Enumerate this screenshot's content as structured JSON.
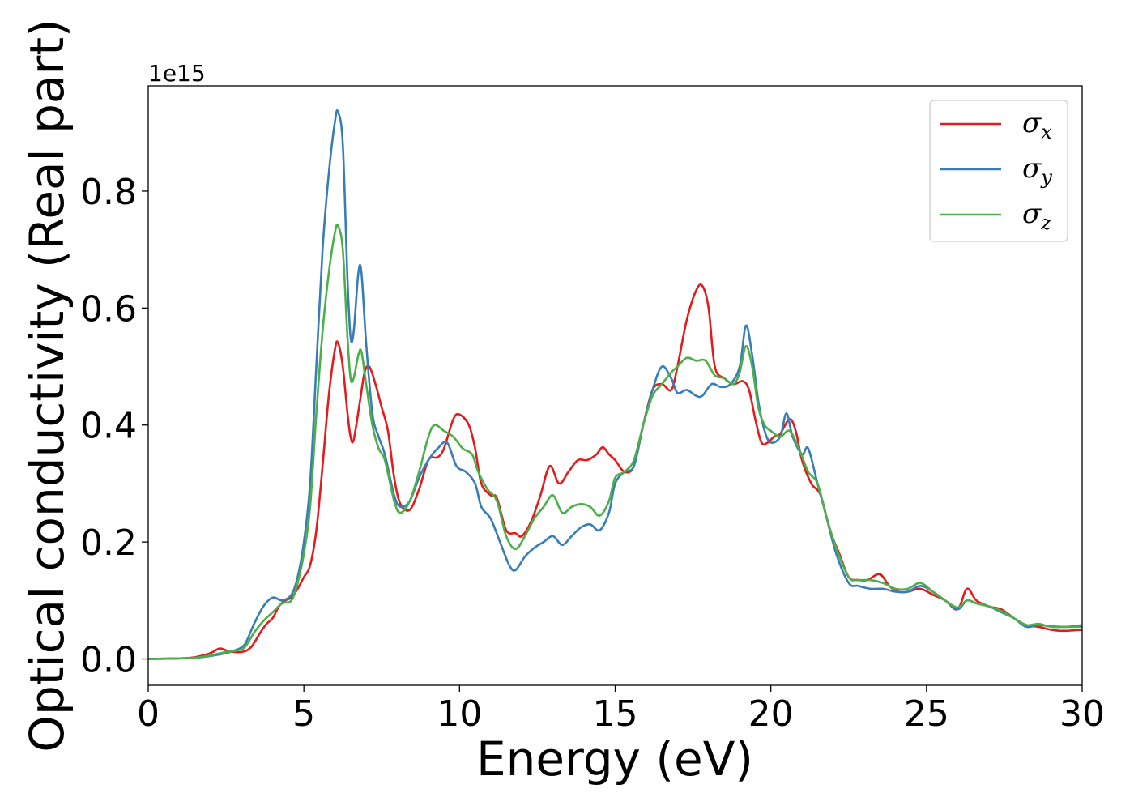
{
  "chart_data": {
    "type": "line",
    "title": "",
    "xlabel": "Energy (eV)",
    "ylabel": "Optical conductivity (Real part)",
    "y_offset_label": "1e15",
    "xlim": [
      0,
      30
    ],
    "ylim": [
      -0.045,
      0.98
    ],
    "y_scale_note": "values in units of 1e15",
    "xticks": [
      0,
      5,
      10,
      15,
      20,
      25,
      30
    ],
    "xtick_labels": [
      "0",
      "5",
      "10",
      "15",
      "20",
      "25",
      "30"
    ],
    "yticks": [
      0.0,
      0.2,
      0.4,
      0.6,
      0.8
    ],
    "ytick_labels": [
      "0.0",
      "0.2",
      "0.4",
      "0.6",
      "0.8"
    ],
    "grid": false,
    "legend_placement": "top-right",
    "series": [
      {
        "name": "σx",
        "symbol": "σ",
        "subscript": "x",
        "color": "#e41a1c",
        "points": [
          [
            0,
            0
          ],
          [
            1,
            0.001
          ],
          [
            1.5,
            0.003
          ],
          [
            2,
            0.01
          ],
          [
            2.3,
            0.018
          ],
          [
            2.6,
            0.013
          ],
          [
            3,
            0.012
          ],
          [
            3.3,
            0.02
          ],
          [
            3.6,
            0.045
          ],
          [
            3.8,
            0.06
          ],
          [
            4,
            0.07
          ],
          [
            4.2,
            0.09
          ],
          [
            4.4,
            0.1
          ],
          [
            4.6,
            0.105
          ],
          [
            4.8,
            0.12
          ],
          [
            5,
            0.14
          ],
          [
            5.2,
            0.16
          ],
          [
            5.4,
            0.22
          ],
          [
            5.6,
            0.33
          ],
          [
            5.8,
            0.45
          ],
          [
            6,
            0.53
          ],
          [
            6.1,
            0.54
          ],
          [
            6.25,
            0.5
          ],
          [
            6.4,
            0.42
          ],
          [
            6.5,
            0.38
          ],
          [
            6.6,
            0.375
          ],
          [
            6.8,
            0.44
          ],
          [
            6.95,
            0.49
          ],
          [
            7.1,
            0.5
          ],
          [
            7.3,
            0.47
          ],
          [
            7.5,
            0.43
          ],
          [
            7.7,
            0.39
          ],
          [
            7.9,
            0.31
          ],
          [
            8.1,
            0.265
          ],
          [
            8.4,
            0.255
          ],
          [
            8.7,
            0.29
          ],
          [
            9,
            0.34
          ],
          [
            9.3,
            0.345
          ],
          [
            9.5,
            0.36
          ],
          [
            9.8,
            0.41
          ],
          [
            10,
            0.418
          ],
          [
            10.3,
            0.4
          ],
          [
            10.5,
            0.36
          ],
          [
            10.7,
            0.3
          ],
          [
            11,
            0.28
          ],
          [
            11.2,
            0.275
          ],
          [
            11.5,
            0.22
          ],
          [
            11.8,
            0.215
          ],
          [
            12,
            0.21
          ],
          [
            12.3,
            0.235
          ],
          [
            12.6,
            0.28
          ],
          [
            12.9,
            0.33
          ],
          [
            13.2,
            0.3
          ],
          [
            13.5,
            0.32
          ],
          [
            13.8,
            0.34
          ],
          [
            14.1,
            0.34
          ],
          [
            14.4,
            0.35
          ],
          [
            14.6,
            0.362
          ],
          [
            14.8,
            0.35
          ],
          [
            15,
            0.34
          ],
          [
            15.3,
            0.32
          ],
          [
            15.6,
            0.33
          ],
          [
            15.9,
            0.4
          ],
          [
            16.2,
            0.46
          ],
          [
            16.5,
            0.47
          ],
          [
            16.8,
            0.46
          ],
          [
            17,
            0.5
          ],
          [
            17.3,
            0.58
          ],
          [
            17.6,
            0.63
          ],
          [
            17.8,
            0.638
          ],
          [
            18,
            0.6
          ],
          [
            18.2,
            0.5
          ],
          [
            18.5,
            0.48
          ],
          [
            18.8,
            0.47
          ],
          [
            19.1,
            0.475
          ],
          [
            19.3,
            0.46
          ],
          [
            19.5,
            0.41
          ],
          [
            19.7,
            0.37
          ],
          [
            19.9,
            0.37
          ],
          [
            20.1,
            0.38
          ],
          [
            20.3,
            0.385
          ],
          [
            20.6,
            0.41
          ],
          [
            20.8,
            0.39
          ],
          [
            21,
            0.34
          ],
          [
            21.3,
            0.3
          ],
          [
            21.6,
            0.28
          ],
          [
            21.9,
            0.22
          ],
          [
            22.2,
            0.18
          ],
          [
            22.5,
            0.14
          ],
          [
            22.8,
            0.135
          ],
          [
            23.1,
            0.135
          ],
          [
            23.5,
            0.145
          ],
          [
            23.8,
            0.125
          ],
          [
            24.1,
            0.115
          ],
          [
            24.4,
            0.115
          ],
          [
            24.8,
            0.12
          ],
          [
            25.2,
            0.11
          ],
          [
            25.6,
            0.1
          ],
          [
            26,
            0.085
          ],
          [
            26.3,
            0.12
          ],
          [
            26.6,
            0.1
          ],
          [
            27,
            0.09
          ],
          [
            27.4,
            0.085
          ],
          [
            27.8,
            0.07
          ],
          [
            28.2,
            0.058
          ],
          [
            28.6,
            0.055
          ],
          [
            29,
            0.05
          ],
          [
            29.4,
            0.048
          ],
          [
            30,
            0.05
          ]
        ]
      },
      {
        "name": "σy",
        "symbol": "σ",
        "subscript": "y",
        "color": "#377eb8",
        "points": [
          [
            0,
            0
          ],
          [
            1,
            0.001
          ],
          [
            1.5,
            0.002
          ],
          [
            2,
            0.005
          ],
          [
            2.5,
            0.01
          ],
          [
            2.8,
            0.015
          ],
          [
            3.1,
            0.025
          ],
          [
            3.4,
            0.06
          ],
          [
            3.7,
            0.09
          ],
          [
            4,
            0.105
          ],
          [
            4.3,
            0.1
          ],
          [
            4.6,
            0.11
          ],
          [
            4.8,
            0.14
          ],
          [
            5,
            0.2
          ],
          [
            5.2,
            0.3
          ],
          [
            5.4,
            0.5
          ],
          [
            5.6,
            0.7
          ],
          [
            5.8,
            0.83
          ],
          [
            6,
            0.92
          ],
          [
            6.1,
            0.935
          ],
          [
            6.25,
            0.88
          ],
          [
            6.4,
            0.65
          ],
          [
            6.5,
            0.55
          ],
          [
            6.6,
            0.56
          ],
          [
            6.75,
            0.66
          ],
          [
            6.85,
            0.66
          ],
          [
            7,
            0.54
          ],
          [
            7.2,
            0.42
          ],
          [
            7.4,
            0.38
          ],
          [
            7.6,
            0.35
          ],
          [
            7.9,
            0.28
          ],
          [
            8.1,
            0.26
          ],
          [
            8.4,
            0.27
          ],
          [
            8.7,
            0.31
          ],
          [
            9,
            0.34
          ],
          [
            9.3,
            0.36
          ],
          [
            9.6,
            0.37
          ],
          [
            9.9,
            0.33
          ],
          [
            10.2,
            0.32
          ],
          [
            10.5,
            0.3
          ],
          [
            10.7,
            0.26
          ],
          [
            11,
            0.24
          ],
          [
            11.3,
            0.2
          ],
          [
            11.6,
            0.16
          ],
          [
            11.8,
            0.152
          ],
          [
            12.1,
            0.175
          ],
          [
            12.4,
            0.19
          ],
          [
            12.7,
            0.2
          ],
          [
            13,
            0.21
          ],
          [
            13.3,
            0.195
          ],
          [
            13.6,
            0.21
          ],
          [
            13.9,
            0.225
          ],
          [
            14.2,
            0.23
          ],
          [
            14.5,
            0.22
          ],
          [
            14.8,
            0.25
          ],
          [
            15,
            0.3
          ],
          [
            15.3,
            0.32
          ],
          [
            15.6,
            0.33
          ],
          [
            15.9,
            0.4
          ],
          [
            16.2,
            0.46
          ],
          [
            16.5,
            0.5
          ],
          [
            16.8,
            0.48
          ],
          [
            17,
            0.455
          ],
          [
            17.3,
            0.46
          ],
          [
            17.6,
            0.45
          ],
          [
            17.8,
            0.45
          ],
          [
            18.1,
            0.47
          ],
          [
            18.4,
            0.465
          ],
          [
            18.7,
            0.47
          ],
          [
            19,
            0.5
          ],
          [
            19.2,
            0.57
          ],
          [
            19.4,
            0.52
          ],
          [
            19.6,
            0.44
          ],
          [
            19.8,
            0.39
          ],
          [
            20,
            0.37
          ],
          [
            20.3,
            0.38
          ],
          [
            20.5,
            0.42
          ],
          [
            20.7,
            0.38
          ],
          [
            21,
            0.35
          ],
          [
            21.2,
            0.36
          ],
          [
            21.5,
            0.3
          ],
          [
            21.8,
            0.24
          ],
          [
            22.1,
            0.18
          ],
          [
            22.5,
            0.13
          ],
          [
            22.8,
            0.125
          ],
          [
            23.2,
            0.12
          ],
          [
            23.6,
            0.12
          ],
          [
            24,
            0.115
          ],
          [
            24.4,
            0.115
          ],
          [
            24.8,
            0.125
          ],
          [
            25.2,
            0.115
          ],
          [
            25.6,
            0.1
          ],
          [
            26,
            0.085
          ],
          [
            26.3,
            0.1
          ],
          [
            26.6,
            0.095
          ],
          [
            27,
            0.09
          ],
          [
            27.4,
            0.08
          ],
          [
            27.8,
            0.07
          ],
          [
            28.2,
            0.055
          ],
          [
            28.6,
            0.058
          ],
          [
            29,
            0.056
          ],
          [
            29.5,
            0.055
          ],
          [
            30,
            0.058
          ]
        ]
      },
      {
        "name": "σz",
        "symbol": "σ",
        "subscript": "z",
        "color": "#4daf4a",
        "points": [
          [
            0,
            0
          ],
          [
            1,
            0.001
          ],
          [
            1.5,
            0.002
          ],
          [
            2,
            0.006
          ],
          [
            2.5,
            0.012
          ],
          [
            2.8,
            0.014
          ],
          [
            3.1,
            0.02
          ],
          [
            3.4,
            0.045
          ],
          [
            3.7,
            0.065
          ],
          [
            4,
            0.08
          ],
          [
            4.3,
            0.095
          ],
          [
            4.6,
            0.1
          ],
          [
            4.8,
            0.13
          ],
          [
            5,
            0.18
          ],
          [
            5.2,
            0.26
          ],
          [
            5.4,
            0.42
          ],
          [
            5.6,
            0.56
          ],
          [
            5.8,
            0.66
          ],
          [
            6,
            0.73
          ],
          [
            6.1,
            0.74
          ],
          [
            6.25,
            0.7
          ],
          [
            6.4,
            0.55
          ],
          [
            6.5,
            0.48
          ],
          [
            6.6,
            0.48
          ],
          [
            6.75,
            0.52
          ],
          [
            6.85,
            0.525
          ],
          [
            7,
            0.47
          ],
          [
            7.2,
            0.4
          ],
          [
            7.4,
            0.36
          ],
          [
            7.6,
            0.34
          ],
          [
            7.9,
            0.27
          ],
          [
            8.1,
            0.25
          ],
          [
            8.4,
            0.27
          ],
          [
            8.7,
            0.32
          ],
          [
            9,
            0.38
          ],
          [
            9.2,
            0.4
          ],
          [
            9.5,
            0.39
          ],
          [
            9.8,
            0.38
          ],
          [
            10.1,
            0.36
          ],
          [
            10.4,
            0.35
          ],
          [
            10.6,
            0.32
          ],
          [
            10.9,
            0.29
          ],
          [
            11.2,
            0.27
          ],
          [
            11.5,
            0.21
          ],
          [
            11.8,
            0.188
          ],
          [
            12.1,
            0.21
          ],
          [
            12.4,
            0.24
          ],
          [
            12.7,
            0.26
          ],
          [
            13,
            0.28
          ],
          [
            13.3,
            0.25
          ],
          [
            13.6,
            0.26
          ],
          [
            13.9,
            0.265
          ],
          [
            14.2,
            0.26
          ],
          [
            14.5,
            0.245
          ],
          [
            14.8,
            0.27
          ],
          [
            15,
            0.31
          ],
          [
            15.3,
            0.32
          ],
          [
            15.6,
            0.34
          ],
          [
            15.9,
            0.4
          ],
          [
            16.2,
            0.45
          ],
          [
            16.5,
            0.47
          ],
          [
            16.8,
            0.49
          ],
          [
            17,
            0.5
          ],
          [
            17.3,
            0.515
          ],
          [
            17.6,
            0.51
          ],
          [
            17.9,
            0.51
          ],
          [
            18.2,
            0.485
          ],
          [
            18.5,
            0.48
          ],
          [
            18.8,
            0.47
          ],
          [
            19,
            0.49
          ],
          [
            19.2,
            0.535
          ],
          [
            19.4,
            0.5
          ],
          [
            19.6,
            0.43
          ],
          [
            19.8,
            0.4
          ],
          [
            20,
            0.39
          ],
          [
            20.3,
            0.38
          ],
          [
            20.6,
            0.39
          ],
          [
            20.9,
            0.36
          ],
          [
            21.2,
            0.32
          ],
          [
            21.5,
            0.3
          ],
          [
            21.8,
            0.24
          ],
          [
            22.1,
            0.19
          ],
          [
            22.5,
            0.14
          ],
          [
            22.8,
            0.135
          ],
          [
            23.2,
            0.135
          ],
          [
            23.6,
            0.13
          ],
          [
            24,
            0.12
          ],
          [
            24.4,
            0.12
          ],
          [
            24.8,
            0.13
          ],
          [
            25.2,
            0.115
          ],
          [
            25.6,
            0.1
          ],
          [
            26,
            0.088
          ],
          [
            26.3,
            0.1
          ],
          [
            26.6,
            0.095
          ],
          [
            27,
            0.09
          ],
          [
            27.4,
            0.082
          ],
          [
            27.8,
            0.07
          ],
          [
            28.2,
            0.058
          ],
          [
            28.6,
            0.06
          ],
          [
            29,
            0.055
          ],
          [
            29.5,
            0.055
          ],
          [
            30,
            0.055
          ]
        ]
      }
    ]
  }
}
